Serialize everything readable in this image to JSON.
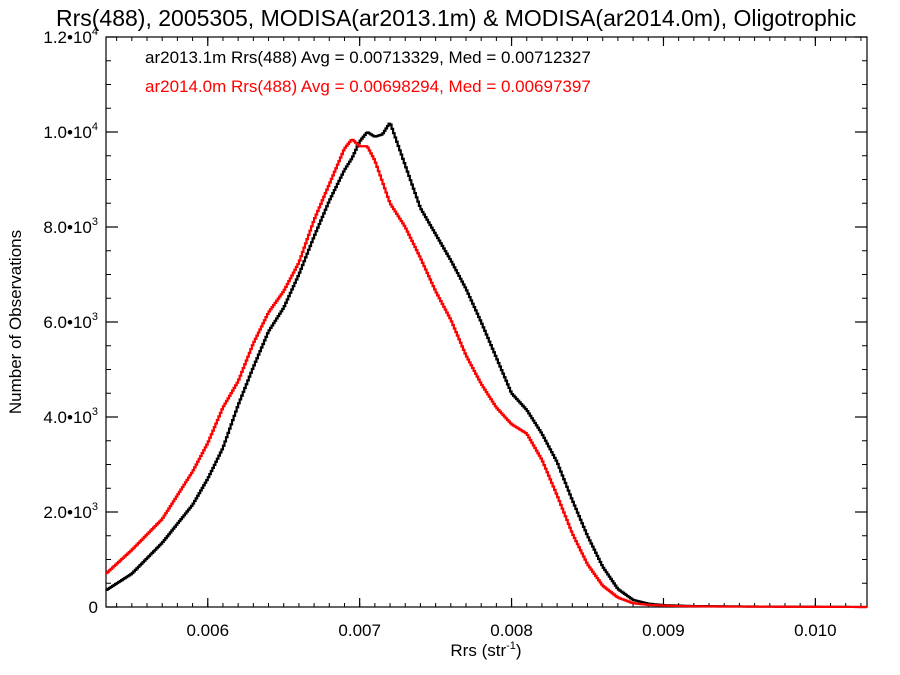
{
  "chart_data": {
    "type": "line",
    "title": "Rrs(488), 2005305, MODISA(ar2013.1m) & MODISA(ar2014.0m), Oligotrophic",
    "xlabel": "Rrs (str",
    "xlabel_sup": "-1",
    "xlabel_close": ")",
    "ylabel": "Number of Observations",
    "xlim": [
      0.00533,
      0.01034
    ],
    "ylim": [
      0,
      12000
    ],
    "x_ticks": [
      {
        "value": 0.006,
        "label": "0.006"
      },
      {
        "value": 0.007,
        "label": "0.007"
      },
      {
        "value": 0.008,
        "label": "0.008"
      },
      {
        "value": 0.009,
        "label": "0.009"
      },
      {
        "value": 0.01,
        "label": "0.010"
      }
    ],
    "y_ticks": [
      {
        "value": 0,
        "mant": "0",
        "exp": ""
      },
      {
        "value": 2000,
        "mant": "2.0•10",
        "exp": "3"
      },
      {
        "value": 4000,
        "mant": "4.0•10",
        "exp": "3"
      },
      {
        "value": 6000,
        "mant": "6.0•10",
        "exp": "3"
      },
      {
        "value": 8000,
        "mant": "8.0•10",
        "exp": "3"
      },
      {
        "value": 10000,
        "mant": "1.0•10",
        "exp": "4"
      },
      {
        "value": 12000,
        "mant": "1.2•10",
        "exp": "4"
      }
    ],
    "grid": false,
    "legend_position": "top-left",
    "series": [
      {
        "name": "ar2013.1m Rrs(488) Avg = 0.00713329, Med = 0.00712327",
        "color": "#000000",
        "x": [
          0.00533,
          0.0055,
          0.0057,
          0.0058,
          0.0059,
          0.006,
          0.0061,
          0.0062,
          0.0063,
          0.0064,
          0.0065,
          0.0066,
          0.0067,
          0.0068,
          0.0069,
          0.00695,
          0.007,
          0.00705,
          0.0071,
          0.00715,
          0.0072,
          0.0073,
          0.0074,
          0.0075,
          0.0076,
          0.0077,
          0.0078,
          0.0079,
          0.008,
          0.0081,
          0.0082,
          0.0083,
          0.0084,
          0.0085,
          0.0086,
          0.0087,
          0.0088,
          0.0089,
          0.009,
          0.0091,
          0.0092,
          0.0094,
          0.0096,
          0.0098,
          0.01,
          0.01034
        ],
        "y": [
          350,
          700,
          1350,
          1750,
          2150,
          2700,
          3350,
          4250,
          5050,
          5800,
          6300,
          7000,
          7800,
          8550,
          9200,
          9450,
          9800,
          10000,
          9900,
          9950,
          10200,
          9300,
          8400,
          7850,
          7300,
          6700,
          6000,
          5250,
          4500,
          4150,
          3650,
          3050,
          2250,
          1500,
          850,
          380,
          150,
          70,
          40,
          30,
          20,
          15,
          10,
          8,
          5,
          0
        ]
      },
      {
        "name": "ar2014.0m Rrs(488) Avg = 0.00698294, Med = 0.00697397",
        "color": "#ff0000",
        "x": [
          0.00533,
          0.0055,
          0.0057,
          0.0058,
          0.0059,
          0.006,
          0.0061,
          0.0062,
          0.0063,
          0.0064,
          0.0065,
          0.0066,
          0.0067,
          0.0068,
          0.0069,
          0.00695,
          0.007,
          0.00705,
          0.0071,
          0.0072,
          0.0073,
          0.0074,
          0.0075,
          0.0076,
          0.0077,
          0.0078,
          0.0079,
          0.008,
          0.0081,
          0.0082,
          0.0083,
          0.0084,
          0.0085,
          0.0086,
          0.0087,
          0.0088,
          0.0089,
          0.009,
          0.0091,
          0.0092,
          0.0094,
          0.0096,
          0.0098,
          0.01,
          0.01034
        ],
        "y": [
          700,
          1200,
          1850,
          2350,
          2850,
          3450,
          4200,
          4750,
          5550,
          6200,
          6650,
          7250,
          8150,
          8900,
          9650,
          9850,
          9700,
          9700,
          9400,
          8500,
          8000,
          7350,
          6650,
          6050,
          5300,
          4700,
          4200,
          3850,
          3650,
          3100,
          2350,
          1550,
          900,
          450,
          200,
          80,
          45,
          30,
          20,
          15,
          10,
          8,
          5,
          3,
          0
        ]
      }
    ]
  }
}
